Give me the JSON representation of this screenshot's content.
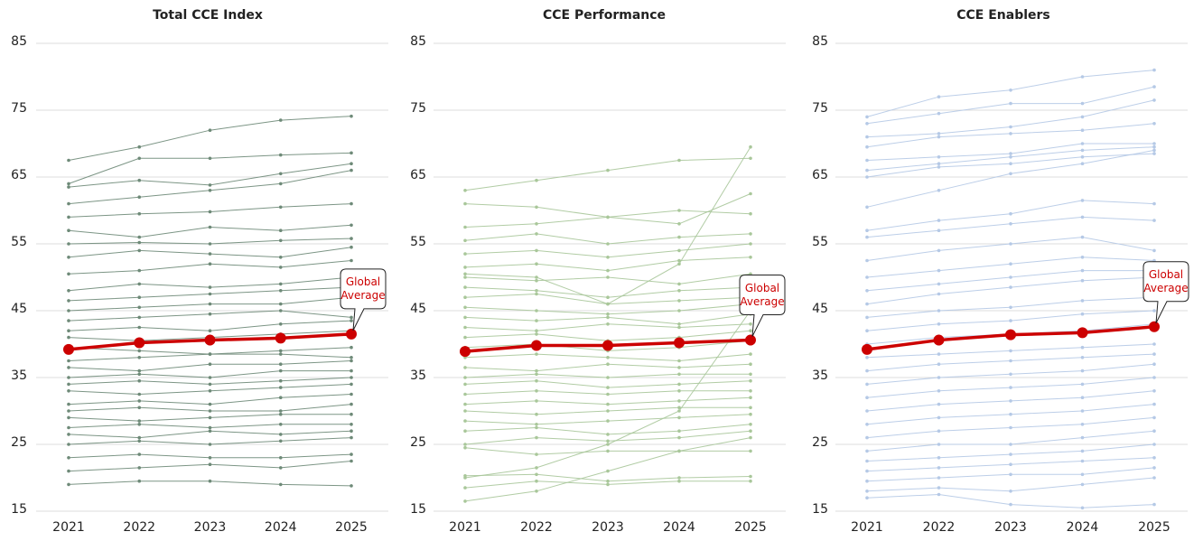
{
  "chart_data": [
    {
      "type": "line",
      "title": "Total CCE Index",
      "categories": [
        "2021",
        "2022",
        "2023",
        "2024",
        "2025"
      ],
      "ylim": [
        15,
        85
      ],
      "yticks": [
        15,
        25,
        35,
        45,
        55,
        65,
        75,
        85
      ],
      "grid": true,
      "series": [
        {
          "color": "#6e8a78",
          "values": [
            67.5,
            69.5,
            72,
            73.5,
            74.1
          ]
        },
        {
          "color": "#6e8a78",
          "values": [
            64,
            67.8,
            67.8,
            68.3,
            68.6
          ]
        },
        {
          "color": "#6e8a78",
          "values": [
            63.5,
            64.5,
            63.8,
            65.5,
            67
          ]
        },
        {
          "color": "#6e8a78",
          "values": [
            61,
            62,
            63,
            64,
            66
          ]
        },
        {
          "color": "#6e8a78",
          "values": [
            59,
            59.5,
            59.8,
            60.5,
            61
          ]
        },
        {
          "color": "#6e8a78",
          "values": [
            57,
            56,
            57.5,
            57,
            57.8
          ]
        },
        {
          "color": "#6e8a78",
          "values": [
            55,
            55.2,
            55,
            55.5,
            55.8
          ]
        },
        {
          "color": "#6e8a78",
          "values": [
            53,
            54,
            53.5,
            53,
            54.5
          ]
        },
        {
          "color": "#6e8a78",
          "values": [
            50.5,
            51,
            52,
            51.5,
            52.5
          ]
        },
        {
          "color": "#6e8a78",
          "values": [
            48,
            49,
            48.5,
            49,
            50
          ]
        },
        {
          "color": "#6e8a78",
          "values": [
            46.5,
            47,
            47.5,
            48,
            48.5
          ]
        },
        {
          "color": "#6e8a78",
          "values": [
            45,
            45.5,
            46,
            46,
            47
          ]
        },
        {
          "color": "#6e8a78",
          "values": [
            43.5,
            44,
            44.5,
            45,
            44
          ]
        },
        {
          "color": "#6e8a78",
          "values": [
            42,
            42.5,
            42,
            43,
            43.5
          ]
        },
        {
          "color": "#6e8a78",
          "values": [
            41,
            40.5,
            41,
            41.5,
            42
          ]
        },
        {
          "color": "#6e8a78",
          "values": [
            39.5,
            39,
            38.5,
            39,
            39.5
          ]
        },
        {
          "color": "#6e8a78",
          "values": [
            37.5,
            38,
            38.5,
            38.5,
            38
          ]
        },
        {
          "color": "#6e8a78",
          "values": [
            36.5,
            36,
            37,
            37,
            37.5
          ]
        },
        {
          "color": "#6e8a78",
          "values": [
            35,
            35.5,
            35,
            36,
            36
          ]
        },
        {
          "color": "#6e8a78",
          "values": [
            34,
            34.5,
            34,
            34.5,
            35
          ]
        },
        {
          "color": "#6e8a78",
          "values": [
            33,
            32.5,
            33,
            33.5,
            34
          ]
        },
        {
          "color": "#6e8a78",
          "values": [
            31,
            31.5,
            31,
            32,
            32.5
          ]
        },
        {
          "color": "#6e8a78",
          "values": [
            30,
            30.5,
            30,
            30,
            31
          ]
        },
        {
          "color": "#6e8a78",
          "values": [
            29,
            28.5,
            29,
            29.5,
            29.5
          ]
        },
        {
          "color": "#6e8a78",
          "values": [
            27.5,
            28,
            27.5,
            28,
            28
          ]
        },
        {
          "color": "#6e8a78",
          "values": [
            26.5,
            26,
            27,
            26.5,
            27
          ]
        },
        {
          "color": "#6e8a78",
          "values": [
            25,
            25.5,
            25,
            25.5,
            26
          ]
        },
        {
          "color": "#6e8a78",
          "values": [
            23,
            23.5,
            23,
            23,
            23.5
          ]
        },
        {
          "color": "#6e8a78",
          "values": [
            21,
            21.5,
            22,
            21.5,
            22.5
          ]
        },
        {
          "color": "#6e8a78",
          "values": [
            19,
            19.5,
            19.5,
            19,
            18.8
          ]
        },
        {
          "name": "Global Average",
          "color": "#cc0000",
          "values": [
            39.2,
            40.2,
            40.6,
            40.9,
            41.5
          ]
        }
      ]
    },
    {
      "type": "line",
      "title": "CCE Performance",
      "categories": [
        "2021",
        "2022",
        "2023",
        "2024",
        "2025"
      ],
      "ylim": [
        15,
        85
      ],
      "yticks": [
        15,
        25,
        35,
        45,
        55,
        65,
        75,
        85
      ],
      "grid": true,
      "series": [
        {
          "color": "#a9c79a",
          "values": [
            63,
            64.5,
            66,
            67.5,
            67.8
          ]
        },
        {
          "color": "#a9c79a",
          "values": [
            61,
            60.5,
            59,
            58,
            62.5
          ]
        },
        {
          "color": "#a9c79a",
          "values": [
            57.5,
            58,
            59,
            60,
            59.5
          ]
        },
        {
          "color": "#a9c79a",
          "values": [
            55.5,
            56.5,
            55,
            56,
            56.5
          ]
        },
        {
          "color": "#a9c79a",
          "values": [
            53.5,
            54,
            53,
            54,
            55
          ]
        },
        {
          "color": "#a9c79a",
          "values": [
            51.5,
            52,
            51,
            52.5,
            53
          ]
        },
        {
          "color": "#a9c79a",
          "values": [
            50,
            49.5,
            50,
            49,
            50.5
          ]
        },
        {
          "color": "#a9c79a",
          "values": [
            48.5,
            48,
            47,
            48,
            48.5
          ]
        },
        {
          "color": "#a9c79a",
          "values": [
            47,
            47.5,
            46,
            46.5,
            47
          ]
        },
        {
          "color": "#a9c79a",
          "values": [
            45.5,
            45,
            44.5,
            45,
            46
          ]
        },
        {
          "color": "#a9c79a",
          "values": [
            44,
            43.5,
            44,
            43,
            44.5
          ]
        },
        {
          "color": "#a9c79a",
          "values": [
            42.5,
            42,
            43,
            42.5,
            43
          ]
        },
        {
          "color": "#a9c79a",
          "values": [
            41,
            41.5,
            40.5,
            41,
            42
          ]
        },
        {
          "color": "#a9c79a",
          "values": [
            39.5,
            40,
            39,
            39.5,
            40.5
          ]
        },
        {
          "color": "#a9c79a",
          "values": [
            38,
            38.5,
            38,
            37.5,
            38.5
          ]
        },
        {
          "color": "#a9c79a",
          "values": [
            36.5,
            36,
            37,
            36.5,
            37
          ]
        },
        {
          "color": "#a9c79a",
          "values": [
            35,
            35.5,
            35,
            35.5,
            35.5
          ]
        },
        {
          "color": "#a9c79a",
          "values": [
            34,
            34.5,
            33.5,
            34,
            34.5
          ]
        },
        {
          "color": "#a9c79a",
          "values": [
            32.5,
            33,
            32.5,
            33,
            33
          ]
        },
        {
          "color": "#a9c79a",
          "values": [
            31,
            31.5,
            31,
            31.5,
            32
          ]
        },
        {
          "color": "#a9c79a",
          "values": [
            30,
            29.5,
            30,
            30.5,
            30.5
          ]
        },
        {
          "color": "#a9c79a",
          "values": [
            28.5,
            28,
            28.5,
            29,
            29.5
          ]
        },
        {
          "color": "#a9c79a",
          "values": [
            27,
            27.5,
            26.5,
            27,
            28
          ]
        },
        {
          "color": "#a9c79a",
          "values": [
            25,
            26,
            25.5,
            26,
            27
          ]
        },
        {
          "color": "#a9c79a",
          "values": [
            24.5,
            23.5,
            24,
            24,
            24
          ]
        },
        {
          "color": "#a9c79a",
          "values": [
            20,
            21.5,
            25,
            30,
            45
          ]
        },
        {
          "color": "#a9c79a",
          "values": [
            20.3,
            20.5,
            19.5,
            20,
            20.2
          ]
        },
        {
          "color": "#a9c79a",
          "values": [
            18.5,
            19.5,
            19,
            19.5,
            19.5
          ]
        },
        {
          "color": "#a9c79a",
          "values": [
            16.5,
            18,
            21,
            24,
            26
          ]
        },
        {
          "color": "#a9c79a",
          "values": [
            50.5,
            50,
            46,
            52,
            69.5
          ]
        },
        {
          "name": "Global Average",
          "color": "#cc0000",
          "values": [
            38.9,
            39.8,
            39.8,
            40.2,
            40.6
          ]
        }
      ]
    },
    {
      "type": "line",
      "title": "CCE Enablers",
      "categories": [
        "2021",
        "2022",
        "2023",
        "2024",
        "2025"
      ],
      "ylim": [
        15,
        85
      ],
      "yticks": [
        15,
        25,
        35,
        45,
        55,
        65,
        75,
        85
      ],
      "grid": true,
      "series": [
        {
          "color": "#b5c9e6",
          "values": [
            74,
            77,
            78,
            80,
            81
          ]
        },
        {
          "color": "#b5c9e6",
          "values": [
            73,
            74.5,
            76,
            76,
            78.5
          ]
        },
        {
          "color": "#b5c9e6",
          "values": [
            71,
            71.5,
            72.5,
            74,
            76.5
          ]
        },
        {
          "color": "#b5c9e6",
          "values": [
            69.5,
            71,
            71.5,
            72,
            73
          ]
        },
        {
          "color": "#b5c9e6",
          "values": [
            67.5,
            68,
            68.5,
            70,
            70
          ]
        },
        {
          "color": "#b5c9e6",
          "values": [
            66,
            67,
            68,
            69,
            69.5
          ]
        },
        {
          "color": "#b5c9e6",
          "values": [
            65,
            66.5,
            67,
            68,
            68.5
          ]
        },
        {
          "color": "#b5c9e6",
          "values": [
            60.5,
            63,
            65.5,
            67,
            69
          ]
        },
        {
          "color": "#b5c9e6",
          "values": [
            57,
            58.5,
            59.5,
            61.5,
            61
          ]
        },
        {
          "color": "#b5c9e6",
          "values": [
            56,
            57,
            58,
            59,
            58.5
          ]
        },
        {
          "color": "#b5c9e6",
          "values": [
            52.5,
            54,
            55,
            56,
            54
          ]
        },
        {
          "color": "#b5c9e6",
          "values": [
            50,
            51,
            52,
            53,
            52.5
          ]
        },
        {
          "color": "#b5c9e6",
          "values": [
            48,
            49,
            50,
            51,
            51
          ]
        },
        {
          "color": "#b5c9e6",
          "values": [
            46,
            47.5,
            48.5,
            49.5,
            50
          ]
        },
        {
          "color": "#b5c9e6",
          "values": [
            44,
            45,
            45.5,
            46.5,
            47
          ]
        },
        {
          "color": "#b5c9e6",
          "values": [
            42,
            43,
            43.5,
            44.5,
            45
          ]
        },
        {
          "color": "#b5c9e6",
          "values": [
            40,
            41,
            41.5,
            42,
            43
          ]
        },
        {
          "color": "#b5c9e6",
          "values": [
            38,
            38.5,
            39,
            39.5,
            40
          ]
        },
        {
          "color": "#b5c9e6",
          "values": [
            36,
            37,
            37.5,
            38,
            38.5
          ]
        },
        {
          "color": "#b5c9e6",
          "values": [
            34,
            35,
            35.5,
            36,
            37
          ]
        },
        {
          "color": "#b5c9e6",
          "values": [
            32,
            33,
            33.5,
            34,
            35
          ]
        },
        {
          "color": "#b5c9e6",
          "values": [
            30,
            31,
            31.5,
            32,
            33
          ]
        },
        {
          "color": "#b5c9e6",
          "values": [
            28,
            29,
            29.5,
            30,
            31
          ]
        },
        {
          "color": "#b5c9e6",
          "values": [
            26,
            27,
            27.5,
            28,
            29
          ]
        },
        {
          "color": "#b5c9e6",
          "values": [
            24,
            25,
            25,
            26,
            27
          ]
        },
        {
          "color": "#b5c9e6",
          "values": [
            22.5,
            23,
            23.5,
            24,
            25
          ]
        },
        {
          "color": "#b5c9e6",
          "values": [
            21,
            21.5,
            22,
            22.5,
            23
          ]
        },
        {
          "color": "#b5c9e6",
          "values": [
            19.5,
            20,
            20.5,
            20.5,
            21.5
          ]
        },
        {
          "color": "#b5c9e6",
          "values": [
            18,
            18.5,
            18,
            19,
            20
          ]
        },
        {
          "color": "#b5c9e6",
          "values": [
            17,
            17.5,
            16,
            15.5,
            16
          ]
        },
        {
          "name": "Global Average",
          "color": "#cc0000",
          "values": [
            39.2,
            40.6,
            41.4,
            41.7,
            42.6
          ]
        }
      ]
    }
  ]
}
